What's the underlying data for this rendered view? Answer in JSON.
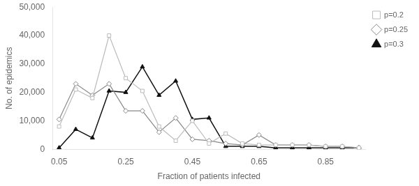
{
  "chart_data": {
    "type": "line",
    "xlabel": "Fraction of patients infected",
    "ylabel": "No. of epidemics",
    "x": [
      0.05,
      0.1,
      0.15,
      0.2,
      0.25,
      0.3,
      0.35,
      0.4,
      0.45,
      0.5,
      0.55,
      0.6,
      0.65,
      0.7,
      0.75,
      0.8,
      0.85,
      0.9,
      0.95
    ],
    "series": [
      {
        "name": "p=0.2",
        "color": "#bbbbbb",
        "marker": "square",
        "values": [
          8000,
          21000,
          18000,
          40000,
          25000,
          20500,
          8000,
          3000,
          10000,
          2000,
          5500,
          2000,
          1500,
          1500,
          1500,
          1500,
          1000,
          1000,
          500
        ]
      },
      {
        "name": "p=0.25",
        "color": "#888888",
        "marker": "diamond",
        "values": [
          10500,
          23000,
          19000,
          23000,
          13500,
          13500,
          6000,
          11000,
          3500,
          3000,
          2000,
          1500,
          5000,
          1500,
          1500,
          1500,
          1000,
          1000,
          500
        ]
      },
      {
        "name": "p=0.3",
        "color": "#111111",
        "marker": "triangle",
        "values": [
          500,
          7000,
          4000,
          20500,
          20000,
          29000,
          19000,
          24000,
          10500,
          11000,
          1000,
          1000,
          1000,
          500,
          500,
          500,
          500,
          500,
          500
        ]
      }
    ],
    "xlim": [
      0.03,
      0.97
    ],
    "xticks": [
      0.05,
      0.25,
      0.45,
      0.65,
      0.85
    ],
    "ylim": [
      0,
      50000
    ],
    "yticks": [
      0,
      {
        "value": 10000,
        "label": "10,000"
      },
      {
        "value": 20000,
        "label": "20,000"
      },
      {
        "value": 30000,
        "label": "30,000"
      },
      {
        "value": 40000,
        "label": "40,000"
      },
      {
        "value": 50000,
        "label": "50,000"
      }
    ],
    "grid": false,
    "legend": "right"
  }
}
